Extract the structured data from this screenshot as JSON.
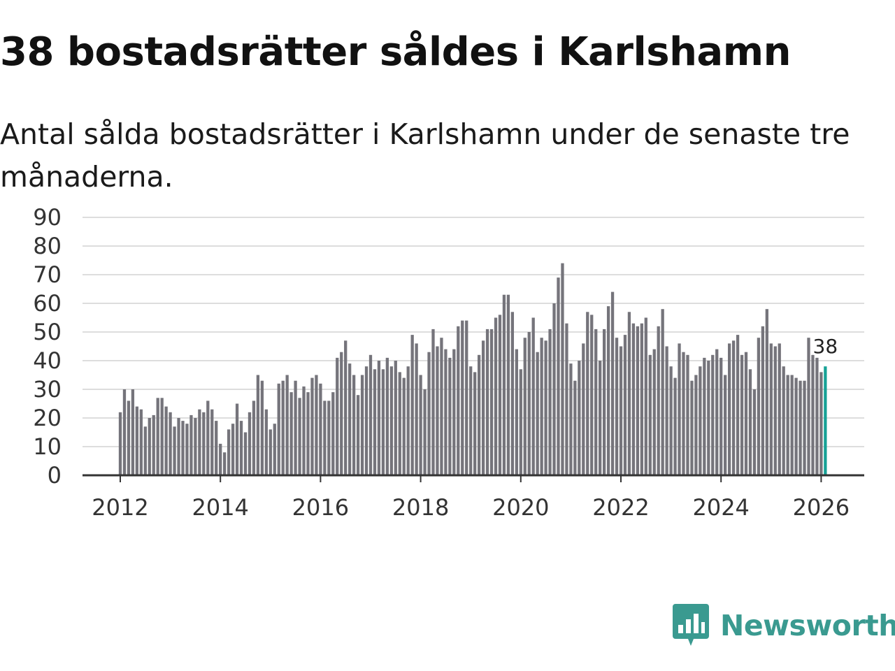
{
  "header": {
    "title": "38 bostadsrätter såldes i Karlshamn",
    "subtitle": "Antal sålda bostadsrätter i Karlshamn under de senaste tre månaderna."
  },
  "brand": {
    "name": "Newsworthy"
  },
  "colors": {
    "bar": "#75747b",
    "highlight": "#16a196",
    "grid": "#dddddd",
    "axis": "#333333",
    "brand": "#3a9a90"
  },
  "chart_data": {
    "type": "bar",
    "title": "38 bostadsrätter såldes i Karlshamn",
    "subtitle": "Antal sålda bostadsrätter i Karlshamn under de senaste tre månaderna.",
    "xlabel": "",
    "ylabel": "",
    "ylim": [
      0,
      90
    ],
    "yticks": [
      0,
      10,
      20,
      30,
      40,
      50,
      60,
      70,
      80,
      90
    ],
    "xticks": [
      "2012",
      "2014",
      "2016",
      "2018",
      "2020",
      "2022",
      "2024",
      "2026"
    ],
    "start": "2012-01",
    "frequency": "monthly",
    "grid": true,
    "highlight_last": true,
    "last_value_label": "38",
    "values": [
      22,
      30,
      26,
      30,
      24,
      23,
      17,
      20,
      21,
      27,
      27,
      24,
      22,
      17,
      20,
      19,
      18,
      21,
      20,
      23,
      22,
      26,
      23,
      19,
      11,
      8,
      16,
      18,
      25,
      19,
      15,
      22,
      26,
      35,
      33,
      23,
      16,
      18,
      32,
      33,
      35,
      29,
      33,
      27,
      31,
      29,
      34,
      35,
      32,
      26,
      26,
      29,
      41,
      43,
      47,
      39,
      35,
      28,
      35,
      38,
      42,
      37,
      40,
      37,
      41,
      38,
      40,
      36,
      34,
      38,
      49,
      46,
      35,
      30,
      43,
      51,
      45,
      48,
      44,
      41,
      44,
      52,
      54,
      54,
      38,
      36,
      42,
      47,
      51,
      51,
      55,
      56,
      63,
      63,
      57,
      44,
      37,
      48,
      50,
      55,
      43,
      48,
      47,
      51,
      60,
      69,
      74,
      53,
      39,
      33,
      40,
      46,
      57,
      56,
      51,
      40,
      51,
      59,
      64,
      48,
      45,
      49,
      57,
      53,
      52,
      53,
      55,
      42,
      44,
      52,
      58,
      45,
      38,
      34,
      46,
      43,
      42,
      33,
      35,
      38,
      41,
      40,
      42,
      44,
      41,
      35,
      46,
      47,
      49,
      42,
      43,
      37,
      30,
      48,
      52,
      58,
      46,
      45,
      46,
      38,
      35,
      35,
      34,
      33,
      33,
      48,
      42,
      41,
      36,
      38
    ]
  }
}
